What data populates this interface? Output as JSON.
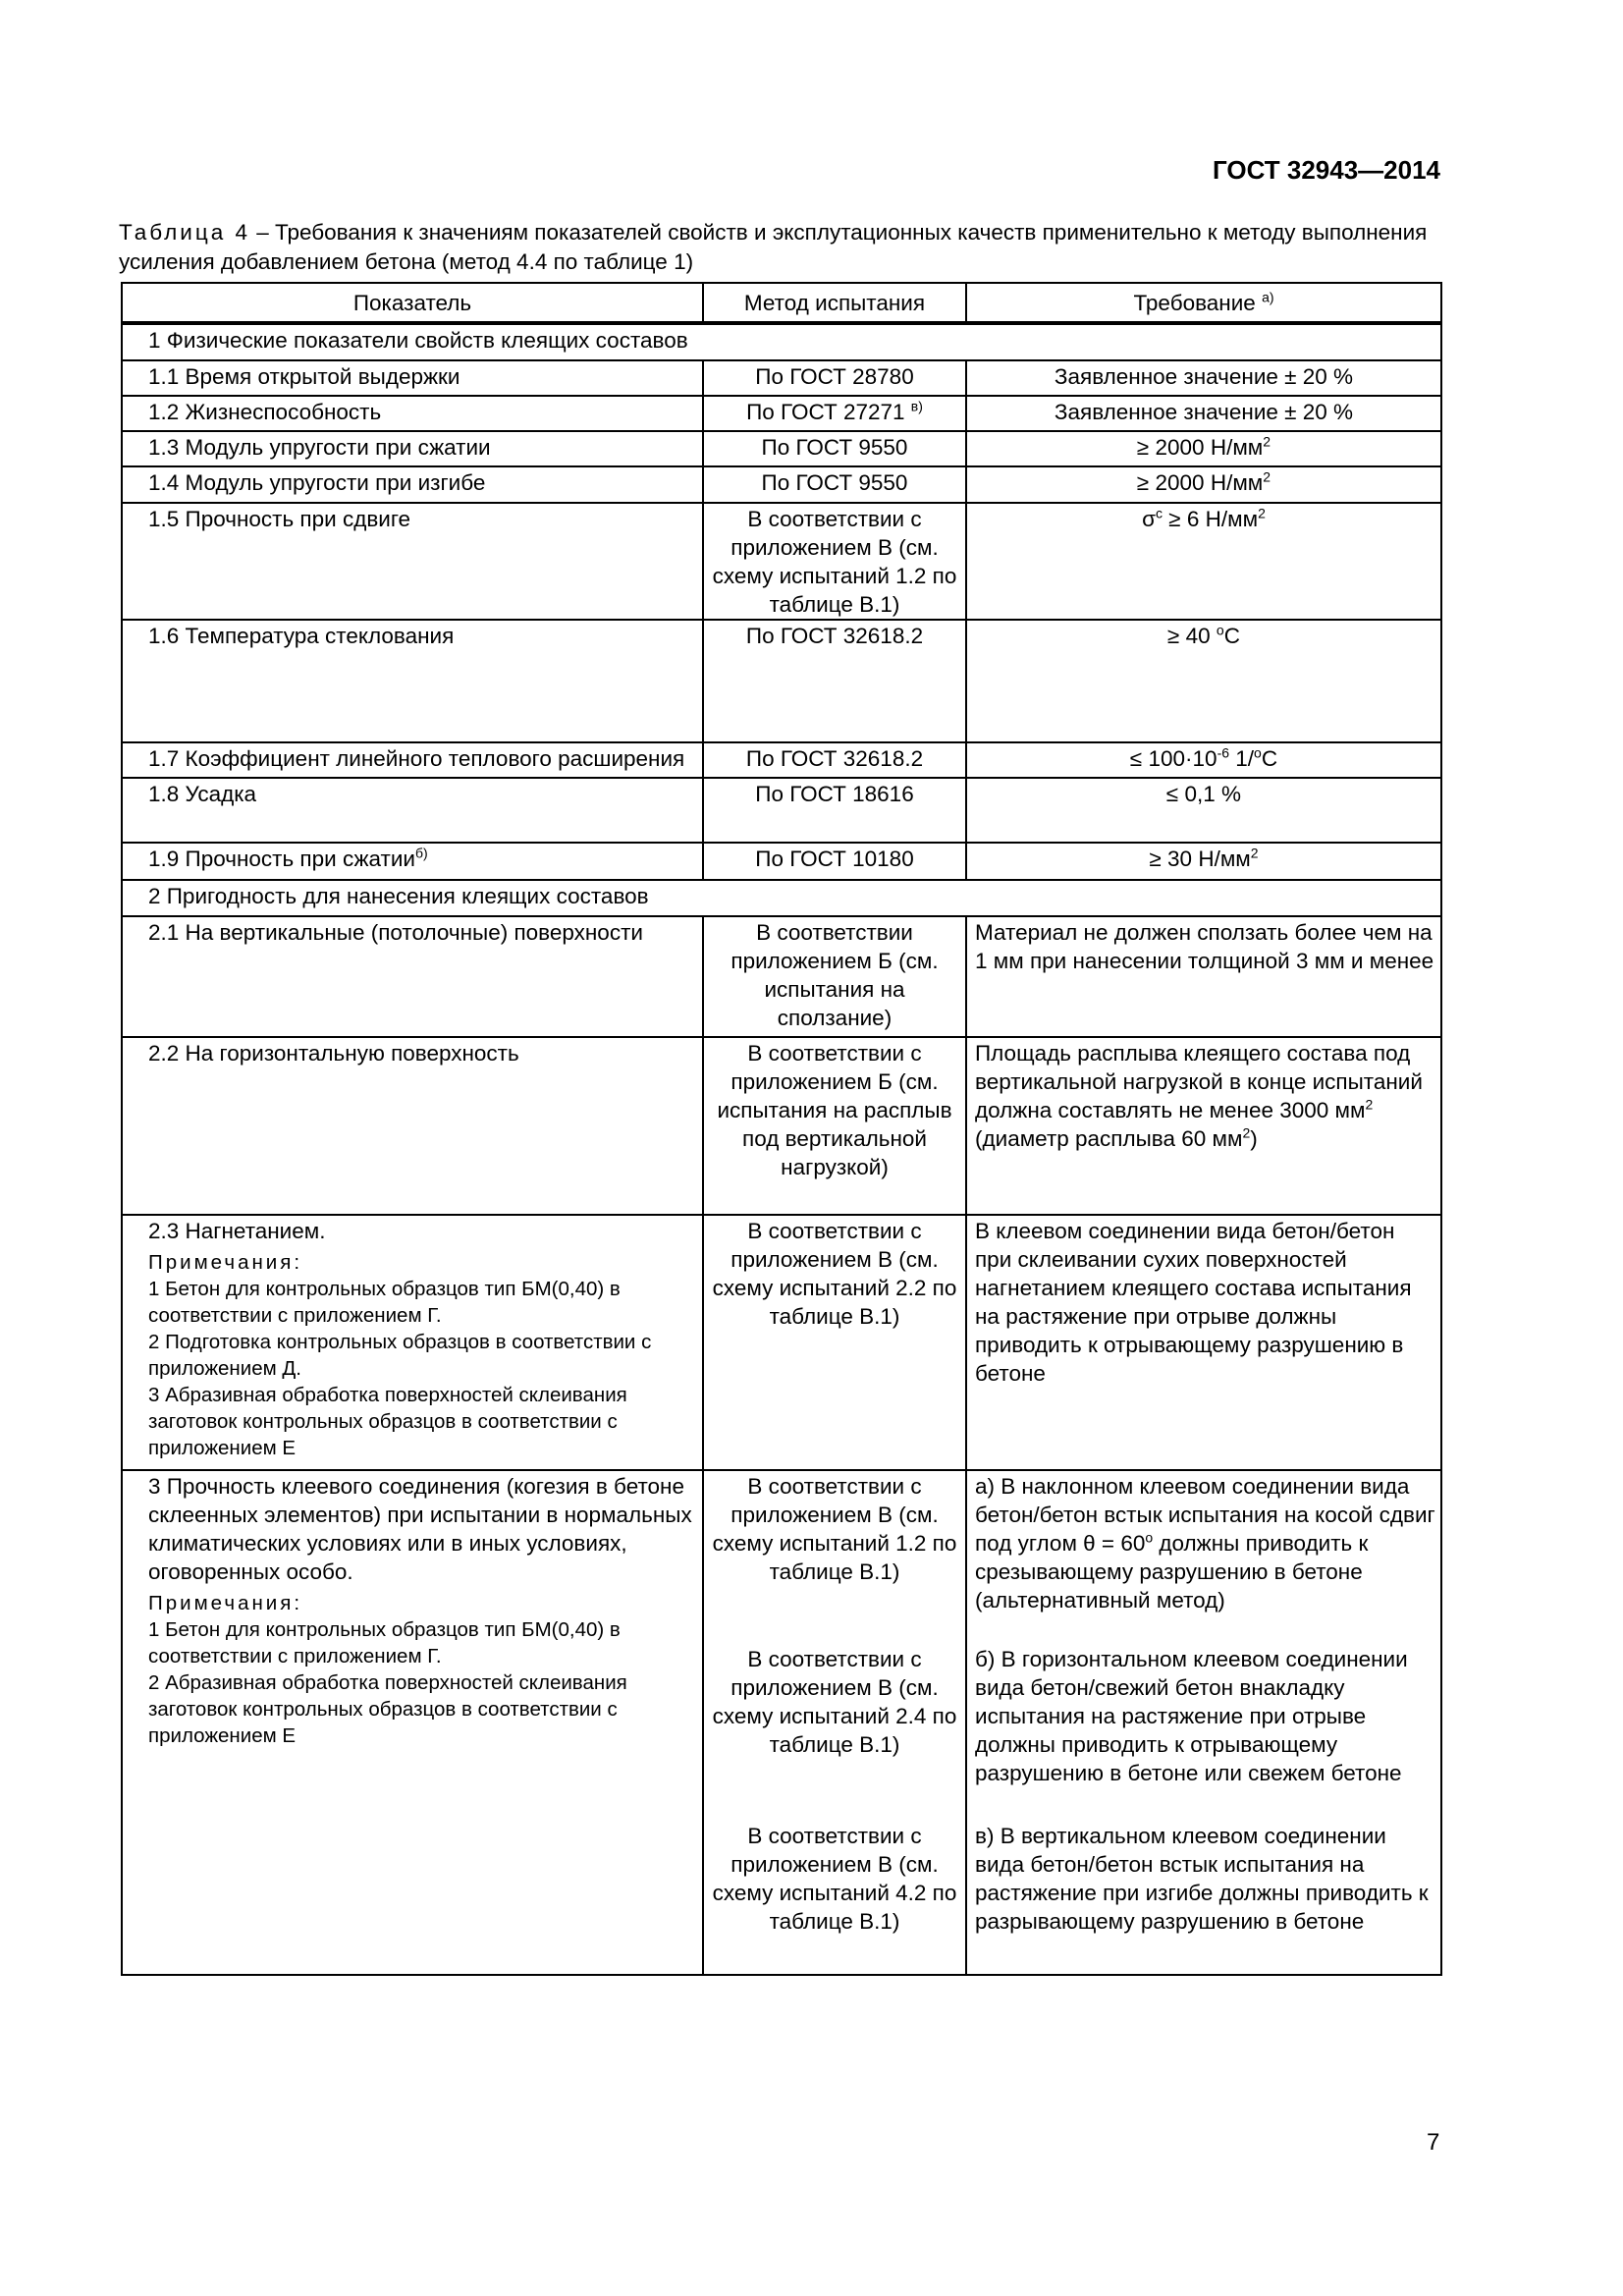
{
  "header": {
    "doc_id": "ГОСТ 32943—2014"
  },
  "caption": {
    "label": "Таблица 4",
    "text": " – Требования к значениям показателей свойств и эксплутационных качеств применительно к методу выполнения усиления добавлением бетона (метод 4.4 по таблице 1)"
  },
  "table": {
    "columns": [
      "Показатель",
      "Метод испытания",
      "Требование"
    ],
    "col3_footnote": "а)",
    "section1": "1 Физические показатели свойств клеящих составов",
    "rows1": [
      {
        "name": "1.1 Время открытой выдержки",
        "method": "По ГОСТ 28780",
        "req": "Заявленное значение ± 20 %"
      },
      {
        "name": "1.2 Жизнеспособность",
        "method": "По ГОСТ 27271",
        "method_sup": "в)",
        "req": "Заявленное значение ± 20 %"
      },
      {
        "name": "1.3 Модуль упругости при сжатии",
        "method": "По ГОСТ 9550",
        "req": "≥ 2000 Н/мм",
        "req_sup": "2"
      },
      {
        "name": "1.4 Модуль упругости при изгибе",
        "method": "По ГОСТ 9550",
        "req": "≥ 2000 Н/мм",
        "req_sup": "2"
      },
      {
        "name": "1.5 Прочность при сдвиге",
        "method": "В соответствии с приложением В (см. схему испытаний 1.2 по таблице В.1)",
        "req_a": "σ",
        "req_a_sup": "c",
        "req": " ≥ 6 Н/мм",
        "req_sup": "2"
      },
      {
        "name": "1.6 Температура стеклования",
        "method": "По ГОСТ 32618.2",
        "req": "≥ 40 ",
        "req_sup": "o",
        "req_b": "C"
      },
      {
        "name": "1.7 Коэффициент линейного теплового расширения",
        "method": "По ГОСТ 32618.2",
        "req": "≤ 100·10",
        "req_sup": "-6",
        "req_b": " 1/",
        "req_sup2": "o",
        "req_c": "C"
      },
      {
        "name": "1.8 Усадка",
        "method": "По ГОСТ 18616",
        "req": "≤ 0,1 %"
      },
      {
        "name": "1.9 Прочность при сжатии",
        "name_sup": "б)",
        "method": "По ГОСТ 10180",
        "req": "≥ 30 Н/мм",
        "req_sup": "2"
      }
    ],
    "section2": "2 Пригодность для нанесения клеящих составов",
    "rows2": [
      {
        "name": "2.1 На вертикальные (потолочные) поверхности",
        "method": "В соответствии приложением Б (см. испытания на сползание)",
        "req": "Материал не должен сползать более чем на 1 мм при нанесении толщиной 3 мм и менее"
      },
      {
        "name": "2.2 На горизонтальную поверхность",
        "method": "В соответствии с приложением Б (см. испытания на расплыв под вертикальной нагрузкой)",
        "req": "Площадь расплыва клеящего состава под вертикальной нагрузкой в конце испытаний должна составлять не менее 3000 мм",
        "req_sup": "2",
        "req_b": " (диаметр расплыва 60 мм",
        "req_sup2": "2",
        "req_c": ")"
      },
      {
        "name": "2.3 Нагнетанием.",
        "notes_label": "Примечания:",
        "notes": [
          "1 Бетон для контрольных образцов тип БМ(0,40) в соответствии с приложением Г.",
          "2 Подготовка контрольных образцов в соответствии с приложением Д.",
          "3 Абразивная обработка поверхностей склеивания заготовок контрольных образцов в соответствии с приложением Е"
        ],
        "method": "В соответствии с приложением В (см. схему испытаний 2.2 по таблице В.1)",
        "req": "В клеевом соединении вида бетон/бетон при склеивании сухих поверхностей нагнетанием клеящего состава испытания на растяжение при отрыве должны приводить к отрывающему разрушению в бетоне"
      }
    ],
    "row3": {
      "name": "3 Прочность клеевого соединения (когезия в бетоне склеенных элементов) при испытании в нормальных климатических условиях или в иных условиях, оговоренных особо.",
      "notes_label": "Примечания:",
      "notes": [
        "1 Бетон для контрольных образцов тип БМ(0,40) в соответствии с приложением Г.",
        "2 Абразивная обработка поверхностей склеивания заготовок контрольных образцов в соответствии с приложением Е"
      ],
      "methods": [
        "В соответствии с приложением В (см. схему испытаний 1.2 по таблице В.1)",
        "В соответствии с приложением В (см. схему испытаний 2.4 по таблице В.1)",
        "В соответствии с приложением В (см. схему испытаний 4.2 по таблице В.1)"
      ],
      "reqs": [
        {
          "a": "а) В наклонном клеевом соединении вида бетон/бетон встык испытания на косой сдвиг под углом θ = 60",
          "sup": "o",
          "b": " должны приводить к срезывающему разрушению в бетоне (альтернативный метод)"
        },
        {
          "a": "б) В горизонтальном клеевом соединении вида бетон/свежий бетон внакладку испытания на растяжение при отрыве должны приводить к отрывающему разрушению в бетоне или свежем бетоне"
        },
        {
          "a": "в) В вертикальном клеевом соединении вида бетон/бетон встык испытания на растяжение при изгибе должны приводить к разрывающему разрушению в бетоне"
        }
      ]
    }
  },
  "page_number": "7"
}
